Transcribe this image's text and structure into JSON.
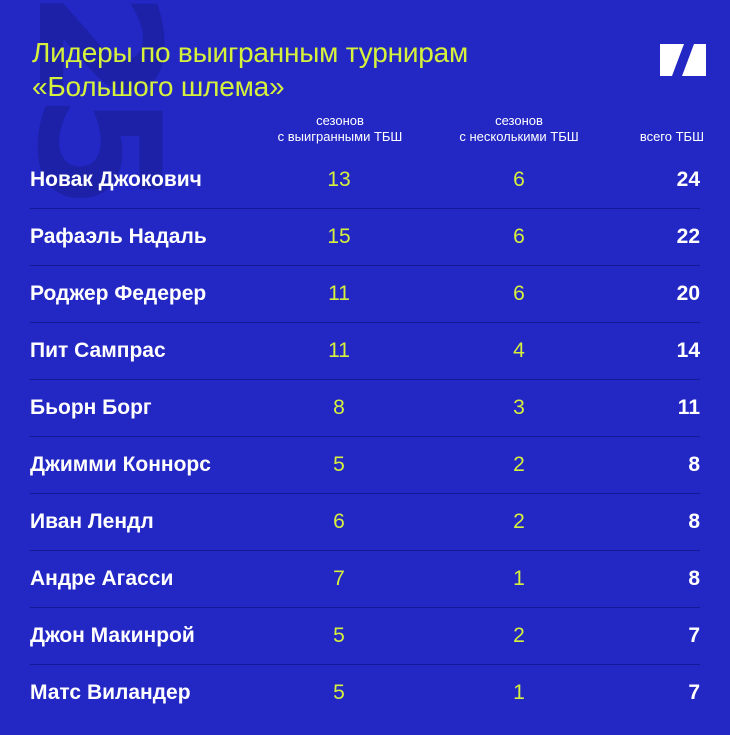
{
  "watermark": "25",
  "title": {
    "line1": "Лидеры по выигранным турнирам",
    "line2": "«Большого шлема»"
  },
  "logo_icon": "n-logo-icon",
  "headers": {
    "seasons_won_line1": "сезонов",
    "seasons_won_line2": "с выигранными ТБШ",
    "seasons_multi_line1": "сезонов",
    "seasons_multi_line2": "с несколькими ТБШ",
    "total": "всего ТБШ"
  },
  "colors": {
    "background": "#2327c4",
    "accent": "#d6f13c",
    "text": "#ffffff"
  },
  "rows": [
    {
      "name": "Новак Джокович",
      "seasons_won": "13",
      "seasons_multi": "6",
      "total": "24"
    },
    {
      "name": "Рафаэль Надаль",
      "seasons_won": "15",
      "seasons_multi": "6",
      "total": "22"
    },
    {
      "name": "Роджер Федерер",
      "seasons_won": "11",
      "seasons_multi": "6",
      "total": "20"
    },
    {
      "name": "Пит Сампрас",
      "seasons_won": "11",
      "seasons_multi": "4",
      "total": "14"
    },
    {
      "name": "Бьорн Борг",
      "seasons_won": "8",
      "seasons_multi": "3",
      "total": "11"
    },
    {
      "name": "Джимми Коннорс",
      "seasons_won": "5",
      "seasons_multi": "2",
      "total": "8"
    },
    {
      "name": "Иван Лендл",
      "seasons_won": "6",
      "seasons_multi": "2",
      "total": "8"
    },
    {
      "name": "Андре Агасси",
      "seasons_won": "7",
      "seasons_multi": "1",
      "total": "8"
    },
    {
      "name": "Джон Макинрой",
      "seasons_won": "5",
      "seasons_multi": "2",
      "total": "7"
    },
    {
      "name": "Матс Виландер",
      "seasons_won": "5",
      "seasons_multi": "1",
      "total": "7"
    }
  ]
}
